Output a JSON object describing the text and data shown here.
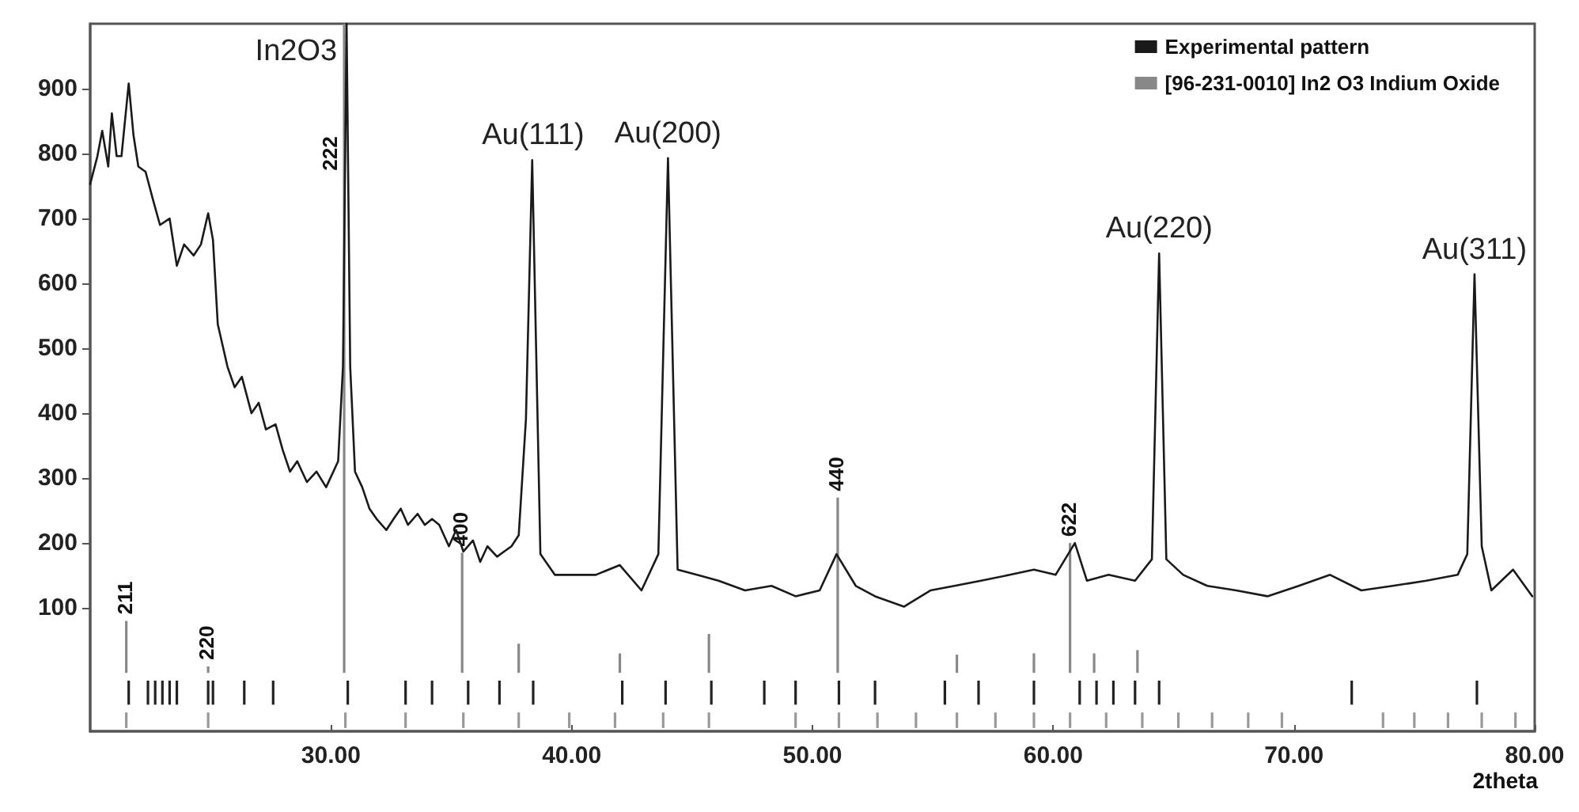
{
  "chart_data": {
    "type": "line",
    "xlabel": "2theta",
    "xlim": [
      20,
      80
    ],
    "ylim": [
      -90,
      1000
    ],
    "xticks": [
      {
        "value": 30,
        "label": "30.00"
      },
      {
        "value": 40,
        "label": "40.00"
      },
      {
        "value": 50,
        "label": "50.00"
      },
      {
        "value": 60,
        "label": "60.00"
      },
      {
        "value": 70,
        "label": "70.00"
      },
      {
        "value": 80,
        "label": "80.00"
      }
    ],
    "yticks": [
      100,
      200,
      300,
      400,
      500,
      600,
      700,
      800,
      900
    ],
    "grid": false,
    "legend": "top right",
    "annotations": [
      {
        "text": "In2O3",
        "x": 30.65,
        "y": 1000
      },
      {
        "text": "Au(111)",
        "x": 38.4,
        "y": 790
      },
      {
        "text": "Au(200)",
        "x": 44.0,
        "y": 793
      },
      {
        "text": "Au(220)",
        "x": 64.4,
        "y": 646
      },
      {
        "text": "Au(311)",
        "x": 77.5,
        "y": 614
      },
      {
        "text": "211",
        "x": 21.5,
        "y": 80
      },
      {
        "text": "220",
        "x": 24.9,
        "y": 10
      },
      {
        "text": "222",
        "x": 30.55,
        "y": 800
      },
      {
        "text": "400",
        "x": 35.45,
        "y": 185
      },
      {
        "text": "440",
        "x": 51.05,
        "y": 270
      },
      {
        "text": "622",
        "x": 60.7,
        "y": 200
      }
    ],
    "series": [
      {
        "name": "Experimental pattern",
        "color": "#1a1a1a",
        "x": [
          20.0,
          20.3,
          20.5,
          20.75,
          20.9,
          21.1,
          21.3,
          21.6,
          21.8,
          22.0,
          22.3,
          22.6,
          22.9,
          23.3,
          23.6,
          23.9,
          24.3,
          24.6,
          24.9,
          25.1,
          25.3,
          25.7,
          26.0,
          26.3,
          26.7,
          27.0,
          27.3,
          27.7,
          28.0,
          28.3,
          28.6,
          29.0,
          29.4,
          29.8,
          30.3,
          30.5,
          30.65,
          30.8,
          31.0,
          31.3,
          31.6,
          31.9,
          32.3,
          32.6,
          32.9,
          33.2,
          33.6,
          33.9,
          34.2,
          34.5,
          34.9,
          35.2,
          35.5,
          35.9,
          36.2,
          36.5,
          36.9,
          37.2,
          37.5,
          37.8,
          38.1,
          38.36,
          38.7,
          39.3,
          40.1,
          41.0,
          42.0,
          42.9,
          43.6,
          44.0,
          44.4,
          45.2,
          46.1,
          47.2,
          48.3,
          49.3,
          50.3,
          51.0,
          51.8,
          52.6,
          53.8,
          54.9,
          55.9,
          57.0,
          58.2,
          59.2,
          60.1,
          60.9,
          61.4,
          62.3,
          63.4,
          64.1,
          64.4,
          64.7,
          65.4,
          66.4,
          67.6,
          68.9,
          70.2,
          71.5,
          72.8,
          74.1,
          75.5,
          76.8,
          77.2,
          77.5,
          77.8,
          78.2,
          79.1,
          79.9
        ],
        "values": [
          753,
          796,
          835,
          780,
          862,
          796,
          796,
          908,
          828,
          780,
          772,
          730,
          690,
          700,
          627,
          660,
          643,
          660,
          708,
          667,
          537,
          472,
          440,
          456,
          400,
          416,
          375,
          383,
          343,
          310,
          326,
          294,
          310,
          286,
          326,
          472,
          1000,
          472,
          310,
          286,
          253,
          237,
          220,
          237,
          253,
          228,
          245,
          228,
          237,
          228,
          195,
          220,
          187,
          204,
          171,
          195,
          179,
          187,
          195,
          212,
          391,
          790,
          183,
          151,
          151,
          151,
          166,
          127,
          183,
          793,
          159,
          151,
          142,
          127,
          134,
          118,
          127,
          183,
          134,
          118,
          102,
          127,
          134,
          142,
          151,
          159,
          151,
          200,
          142,
          151,
          142,
          175,
          646,
          175,
          151,
          134,
          127,
          118,
          134,
          151,
          127,
          134,
          142,
          151,
          183,
          614,
          195,
          127,
          159,
          118
        ]
      },
      {
        "name": "[96-231-0010] In2 O3 Indium Oxide",
        "type": "bar",
        "color": "#888888",
        "x": [
          21.5,
          24.9,
          30.55,
          35.45,
          37.8,
          42.0,
          45.7,
          51.05,
          56.0,
          59.2,
          60.7,
          61.7,
          63.5
        ],
        "values": [
          80,
          10,
          1000,
          185,
          45,
          30,
          60,
          270,
          28,
          30,
          200,
          30,
          35
        ]
      },
      {
        "type": "bar",
        "color": "#222222",
        "x": [
          21.6,
          22.4,
          22.7,
          23.0,
          23.3,
          23.6,
          24.9,
          25.1,
          26.4,
          27.6,
          30.7,
          33.1,
          34.2,
          35.7,
          37.0,
          38.4,
          42.1,
          43.9,
          45.8,
          48.0,
          49.3,
          51.1,
          52.6,
          55.5,
          56.9,
          59.2,
          61.1,
          61.8,
          62.5,
          63.4,
          64.4,
          72.4,
          77.6
        ],
        "values": [
          37,
          37,
          37,
          37,
          37,
          37,
          37,
          37,
          37,
          37,
          37,
          37,
          37,
          37,
          37,
          37,
          37,
          37,
          37,
          37,
          37,
          37,
          37,
          37,
          37,
          37,
          37,
          37,
          37,
          37,
          37,
          37,
          37
        ],
        "base": [
          -49,
          -49,
          -49,
          -49,
          -49,
          -49,
          -49,
          -49,
          -49,
          -49,
          -49,
          -49,
          -49,
          -49,
          -49,
          -49,
          -49,
          -49,
          -49,
          -49,
          -49,
          -49,
          -49,
          -49,
          -49,
          -49,
          -49,
          -49,
          -49,
          -49,
          -49,
          -49,
          -49
        ]
      },
      {
        "type": "bar",
        "color": "#999999",
        "x": [
          21.5,
          24.9,
          30.6,
          33.1,
          35.5,
          37.8,
          39.9,
          41.8,
          43.8,
          45.7,
          49.3,
          51.1,
          52.7,
          54.3,
          56.0,
          57.6,
          59.2,
          60.7,
          62.2,
          63.7,
          65.2,
          66.6,
          68.1,
          69.5,
          73.7,
          75.0,
          76.4,
          77.8,
          79.2
        ],
        "values": [
          24,
          24,
          24,
          24,
          24,
          24,
          24,
          24,
          24,
          24,
          24,
          24,
          24,
          24,
          24,
          24,
          24,
          24,
          24,
          24,
          24,
          24,
          24,
          24,
          24,
          24,
          24,
          24,
          24
        ],
        "base": [
          -85,
          -85,
          -85,
          -85,
          -85,
          -85,
          -85,
          -85,
          -85,
          -85,
          -85,
          -85,
          -85,
          -85,
          -85,
          -85,
          -85,
          -85,
          -85,
          -85,
          -85,
          -85,
          -85,
          -85,
          -85,
          -85,
          -85,
          -85,
          -85
        ]
      }
    ]
  }
}
